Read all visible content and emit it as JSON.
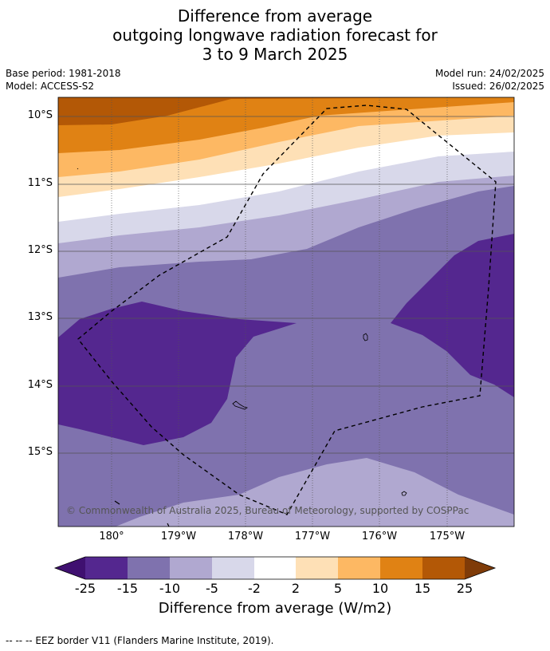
{
  "title_lines": [
    "Difference from average",
    "outgoing longwave radiation forecast for",
    "3 to 9 March 2025"
  ],
  "meta_left": [
    "Base period: 1981-2018",
    "Model: ACCESS-S2"
  ],
  "meta_right": [
    "Model run: 24/02/2025",
    "Issued: 26/02/2025"
  ],
  "lat_labels": [
    "10°S",
    "11°S",
    "12°S",
    "13°S",
    "14°S",
    "15°S"
  ],
  "lon_labels": [
    "180°",
    "179°W",
    "178°W",
    "177°W",
    "176°W",
    "175°W"
  ],
  "copyright": "© Commonwealth of Australia 2025, Bureau of Meteorology, supported by COSPPac",
  "colorbar": {
    "ticks": [
      "-25",
      "-15",
      "-10",
      "-5",
      "-2",
      "2",
      "5",
      "10",
      "15",
      "25"
    ],
    "colors": [
      "#3f1070",
      "#54278f",
      "#7f72ae",
      "#b0a8d0",
      "#d8d8ea",
      "#ffffff",
      "#fee0b6",
      "#fdb863",
      "#e08214",
      "#b35806",
      "#7f3b08"
    ],
    "label": "Difference from average (W/m2)"
  },
  "footnote": "--  --  -- EEZ border V11 (Flanders Marine Institute, 2019).",
  "colors": {
    "grid": "#555555",
    "eez": "#000000"
  }
}
